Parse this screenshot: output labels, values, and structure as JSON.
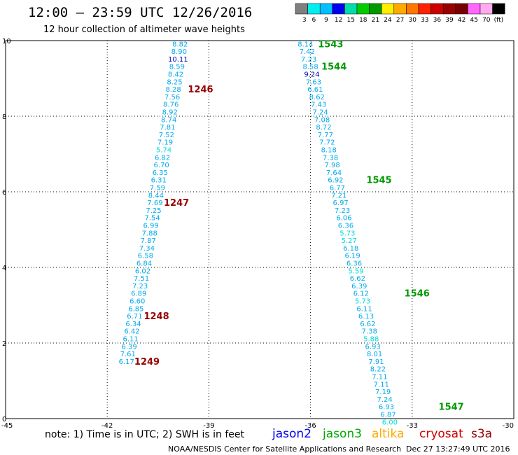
{
  "title": "12:00 – 23:59 UTC 12/26/2016",
  "subtitle": "12 hour collection of altimeter wave heights",
  "legend": {
    "labels": [
      "3",
      "6",
      "9",
      "12",
      "15",
      "18",
      "21",
      "24",
      "27",
      "30",
      "33",
      "36",
      "39",
      "42",
      "45",
      "70",
      "(ft)"
    ],
    "colors": [
      "#7f7f7f",
      "#00eeee",
      "#00c0ff",
      "#0000ee",
      "#00ddaa",
      "#00cc00",
      "#009900",
      "#ffee00",
      "#ffaa00",
      "#ff7700",
      "#ff2200",
      "#cc0000",
      "#990000",
      "#770000",
      "#ff66ff",
      "#ffaaee",
      "#000000"
    ]
  },
  "note": "note: 1) Time is in UTC; 2) SWH is in feet",
  "satellites": [
    {
      "name": "jason2",
      "color": "#0000ee"
    },
    {
      "name": "jason3",
      "color": "#00aa00"
    },
    {
      "name": "altika",
      "color": "#ffaa00"
    },
    {
      "name": "cryosat",
      "color": "#cc0000"
    },
    {
      "name": "s3a",
      "color": "#990000"
    }
  ],
  "footer_left": "NOAA/NESDIS Center for Satellite Applications and Research",
  "footer_right": "Dec 27 13:27:49 UTC 2016",
  "chart_data": {
    "type": "scatter",
    "xlim": [
      -45,
      -30
    ],
    "ylim": [
      0,
      10
    ],
    "x_ticks": [
      "-45",
      "-42",
      "-39",
      "-36",
      "-33",
      "-30"
    ],
    "y_ticks": [
      "0",
      "2",
      "4",
      "6",
      "8",
      "10"
    ],
    "grid": true,
    "tracks": [
      {
        "color": "#00aaee",
        "points": [
          {
            "lon": -39.85,
            "lat": 9.92,
            "v": "8.82",
            "c": "#00aaee"
          },
          {
            "lon": -39.88,
            "lat": 9.72,
            "v": "8.90",
            "c": "#00aaee"
          },
          {
            "lon": -39.91,
            "lat": 9.52,
            "v": "10.11",
            "c": "#0000bb"
          },
          {
            "lon": -39.94,
            "lat": 9.32,
            "v": "8.59",
            "c": "#00aaee"
          },
          {
            "lon": -39.98,
            "lat": 9.12,
            "v": "8.42",
            "c": "#00aaee"
          },
          {
            "lon": -40.01,
            "lat": 8.92,
            "v": "8.25",
            "c": "#00aaee"
          },
          {
            "lon": -40.05,
            "lat": 8.72,
            "v": "8.28",
            "c": "#00aaee"
          },
          {
            "lon": -40.08,
            "lat": 8.52,
            "v": "7.56",
            "c": "#00aaee"
          },
          {
            "lon": -40.12,
            "lat": 8.32,
            "v": "8.76",
            "c": "#00aaee"
          },
          {
            "lon": -40.15,
            "lat": 8.12,
            "v": "8.92",
            "c": "#00aaee"
          },
          {
            "lon": -40.18,
            "lat": 7.92,
            "v": "8.74",
            "c": "#00aaee"
          },
          {
            "lon": -40.22,
            "lat": 7.72,
            "v": "7.81",
            "c": "#00aaee"
          },
          {
            "lon": -40.25,
            "lat": 7.52,
            "v": "7.52",
            "c": "#00aaee"
          },
          {
            "lon": -40.29,
            "lat": 7.32,
            "v": "7.19",
            "c": "#00aaee"
          },
          {
            "lon": -40.33,
            "lat": 7.12,
            "v": "5.74",
            "c": "#00dddd"
          },
          {
            "lon": -40.37,
            "lat": 6.92,
            "v": "6.82",
            "c": "#00aaee"
          },
          {
            "lon": -40.4,
            "lat": 6.72,
            "v": "6.70",
            "c": "#00aaee"
          },
          {
            "lon": -40.44,
            "lat": 6.52,
            "v": "6.35",
            "c": "#00aaee"
          },
          {
            "lon": -40.48,
            "lat": 6.32,
            "v": "6.31",
            "c": "#00aaee"
          },
          {
            "lon": -40.52,
            "lat": 6.12,
            "v": "7.59",
            "c": "#00aaee"
          },
          {
            "lon": -40.56,
            "lat": 5.92,
            "v": "8.44",
            "c": "#00aaee"
          },
          {
            "lon": -40.59,
            "lat": 5.72,
            "v": "7.69",
            "c": "#00aaee"
          },
          {
            "lon": -40.63,
            "lat": 5.52,
            "v": "7.25",
            "c": "#00aaee"
          },
          {
            "lon": -40.67,
            "lat": 5.32,
            "v": "7.54",
            "c": "#00aaee"
          },
          {
            "lon": -40.71,
            "lat": 5.12,
            "v": "6.99",
            "c": "#00aaee"
          },
          {
            "lon": -40.75,
            "lat": 4.92,
            "v": "7.88",
            "c": "#00aaee"
          },
          {
            "lon": -40.79,
            "lat": 4.72,
            "v": "7.87",
            "c": "#00aaee"
          },
          {
            "lon": -40.83,
            "lat": 4.52,
            "v": "7.34",
            "c": "#00aaee"
          },
          {
            "lon": -40.87,
            "lat": 4.32,
            "v": "6.58",
            "c": "#00aaee"
          },
          {
            "lon": -40.91,
            "lat": 4.12,
            "v": "6.84",
            "c": "#00aaee"
          },
          {
            "lon": -40.95,
            "lat": 3.92,
            "v": "6.02",
            "c": "#00aaee"
          },
          {
            "lon": -40.99,
            "lat": 3.72,
            "v": "7.51",
            "c": "#00aaee"
          },
          {
            "lon": -41.03,
            "lat": 3.52,
            "v": "7.23",
            "c": "#00aaee"
          },
          {
            "lon": -41.07,
            "lat": 3.32,
            "v": "6.89",
            "c": "#00aaee"
          },
          {
            "lon": -41.11,
            "lat": 3.12,
            "v": "6.60",
            "c": "#00aaee"
          },
          {
            "lon": -41.15,
            "lat": 2.92,
            "v": "6.85",
            "c": "#00aaee"
          },
          {
            "lon": -41.19,
            "lat": 2.72,
            "v": "6.71",
            "c": "#00aaee"
          },
          {
            "lon": -41.23,
            "lat": 2.52,
            "v": "6.34",
            "c": "#00aaee"
          },
          {
            "lon": -41.27,
            "lat": 2.32,
            "v": "6.42",
            "c": "#00aaee"
          },
          {
            "lon": -41.31,
            "lat": 2.12,
            "v": "6.11",
            "c": "#00aaee"
          },
          {
            "lon": -41.35,
            "lat": 1.92,
            "v": "6.39",
            "c": "#00aaee"
          },
          {
            "lon": -41.39,
            "lat": 1.72,
            "v": "7.61",
            "c": "#00aaee"
          },
          {
            "lon": -41.43,
            "lat": 1.52,
            "v": "6.17",
            "c": "#00aaee"
          }
        ],
        "times": [
          {
            "lon": -39.62,
            "lat": 8.72,
            "t": "1246",
            "c": "#990000"
          },
          {
            "lon": -40.33,
            "lat": 5.72,
            "t": "1247",
            "c": "#990000"
          },
          {
            "lon": -40.92,
            "lat": 2.72,
            "t": "1248",
            "c": "#990000"
          },
          {
            "lon": -41.2,
            "lat": 1.52,
            "t": "1249",
            "c": "#990000"
          }
        ]
      },
      {
        "color": "#00aaee",
        "points": [
          {
            "lon": -36.15,
            "lat": 9.92,
            "v": "8.14",
            "c": "#00aaee"
          },
          {
            "lon": -36.1,
            "lat": 9.72,
            "v": "7.42",
            "c": "#00aaee"
          },
          {
            "lon": -36.05,
            "lat": 9.52,
            "v": "7.23",
            "c": "#00aaee"
          },
          {
            "lon": -36.0,
            "lat": 9.32,
            "v": "8.58",
            "c": "#00aaee"
          },
          {
            "lon": -35.96,
            "lat": 9.12,
            "v": "9.24",
            "c": "#0000bb"
          },
          {
            "lon": -35.91,
            "lat": 8.92,
            "v": "7.63",
            "c": "#00aaee"
          },
          {
            "lon": -35.86,
            "lat": 8.72,
            "v": "6.61",
            "c": "#00aaee"
          },
          {
            "lon": -35.81,
            "lat": 8.52,
            "v": "8.62",
            "c": "#00aaee"
          },
          {
            "lon": -35.76,
            "lat": 8.32,
            "v": "7.43",
            "c": "#00aaee"
          },
          {
            "lon": -35.71,
            "lat": 8.12,
            "v": "7.24",
            "c": "#00aaee"
          },
          {
            "lon": -35.66,
            "lat": 7.92,
            "v": "7.08",
            "c": "#00aaee"
          },
          {
            "lon": -35.61,
            "lat": 7.72,
            "v": "8.72",
            "c": "#00aaee"
          },
          {
            "lon": -35.56,
            "lat": 7.52,
            "v": "7.77",
            "c": "#00aaee"
          },
          {
            "lon": -35.51,
            "lat": 7.32,
            "v": "7.72",
            "c": "#00aaee"
          },
          {
            "lon": -35.46,
            "lat": 7.12,
            "v": "8.18",
            "c": "#00aaee"
          },
          {
            "lon": -35.41,
            "lat": 6.92,
            "v": "7.38",
            "c": "#00aaee"
          },
          {
            "lon": -35.36,
            "lat": 6.72,
            "v": "7.98",
            "c": "#00aaee"
          },
          {
            "lon": -35.31,
            "lat": 6.52,
            "v": "7.64",
            "c": "#00aaee"
          },
          {
            "lon": -35.26,
            "lat": 6.32,
            "v": "6.92",
            "c": "#00aaee"
          },
          {
            "lon": -35.21,
            "lat": 6.12,
            "v": "6.77",
            "c": "#00aaee"
          },
          {
            "lon": -35.16,
            "lat": 5.92,
            "v": "7.21",
            "c": "#00aaee"
          },
          {
            "lon": -35.11,
            "lat": 5.72,
            "v": "6.97",
            "c": "#00aaee"
          },
          {
            "lon": -35.06,
            "lat": 5.52,
            "v": "7.23",
            "c": "#00aaee"
          },
          {
            "lon": -35.01,
            "lat": 5.32,
            "v": "6.06",
            "c": "#00aaee"
          },
          {
            "lon": -34.96,
            "lat": 5.12,
            "v": "6.36",
            "c": "#00aaee"
          },
          {
            "lon": -34.91,
            "lat": 4.92,
            "v": "5.73",
            "c": "#00dddd"
          },
          {
            "lon": -34.86,
            "lat": 4.72,
            "v": "5.27",
            "c": "#00dddd"
          },
          {
            "lon": -34.81,
            "lat": 4.52,
            "v": "6.18",
            "c": "#00aaee"
          },
          {
            "lon": -34.76,
            "lat": 4.32,
            "v": "6.19",
            "c": "#00aaee"
          },
          {
            "lon": -34.71,
            "lat": 4.12,
            "v": "6.36",
            "c": "#00aaee"
          },
          {
            "lon": -34.66,
            "lat": 3.92,
            "v": "5.59",
            "c": "#00dddd"
          },
          {
            "lon": -34.61,
            "lat": 3.72,
            "v": "6.62",
            "c": "#00aaee"
          },
          {
            "lon": -34.56,
            "lat": 3.52,
            "v": "6.39",
            "c": "#00aaee"
          },
          {
            "lon": -34.51,
            "lat": 3.32,
            "v": "6.12",
            "c": "#00aaee"
          },
          {
            "lon": -34.46,
            "lat": 3.12,
            "v": "5.73",
            "c": "#00dddd"
          },
          {
            "lon": -34.41,
            "lat": 2.92,
            "v": "6.11",
            "c": "#00aaee"
          },
          {
            "lon": -34.36,
            "lat": 2.72,
            "v": "6.13",
            "c": "#00aaee"
          },
          {
            "lon": -34.31,
            "lat": 2.52,
            "v": "6.62",
            "c": "#00aaee"
          },
          {
            "lon": -34.26,
            "lat": 2.32,
            "v": "7.38",
            "c": "#00aaee"
          },
          {
            "lon": -34.21,
            "lat": 2.12,
            "v": "5.88",
            "c": "#00dddd"
          },
          {
            "lon": -34.16,
            "lat": 1.92,
            "v": "6.93",
            "c": "#00aaee"
          },
          {
            "lon": -34.11,
            "lat": 1.72,
            "v": "8.01",
            "c": "#00aaee"
          },
          {
            "lon": -34.06,
            "lat": 1.52,
            "v": "7.91",
            "c": "#00aaee"
          },
          {
            "lon": -34.01,
            "lat": 1.32,
            "v": "8.22",
            "c": "#00aaee"
          },
          {
            "lon": -33.96,
            "lat": 1.12,
            "v": "7.11",
            "c": "#00aaee"
          },
          {
            "lon": -33.91,
            "lat": 0.92,
            "v": "7.11",
            "c": "#00aaee"
          },
          {
            "lon": -33.86,
            "lat": 0.72,
            "v": "7.19",
            "c": "#00aaee"
          },
          {
            "lon": -33.81,
            "lat": 0.52,
            "v": "7.24",
            "c": "#00aaee"
          },
          {
            "lon": -33.76,
            "lat": 0.32,
            "v": "6.93",
            "c": "#00aaee"
          },
          {
            "lon": -33.71,
            "lat": 0.12,
            "v": "6.87",
            "c": "#00aaee"
          },
          {
            "lon": -33.66,
            "lat": -0.08,
            "v": "6.00",
            "c": "#00dddd"
          }
        ],
        "times": [
          {
            "lon": -35.78,
            "lat": 9.92,
            "t": "1543",
            "c": "#009900"
          },
          {
            "lon": -35.68,
            "lat": 9.32,
            "t": "1544",
            "c": "#009900"
          },
          {
            "lon": -34.35,
            "lat": 6.32,
            "t": "1545",
            "c": "#009900"
          },
          {
            "lon": -33.23,
            "lat": 3.32,
            "t": "1546",
            "c": "#009900"
          },
          {
            "lon": -32.22,
            "lat": 0.32,
            "t": "1547",
            "c": "#009900"
          }
        ]
      }
    ]
  }
}
